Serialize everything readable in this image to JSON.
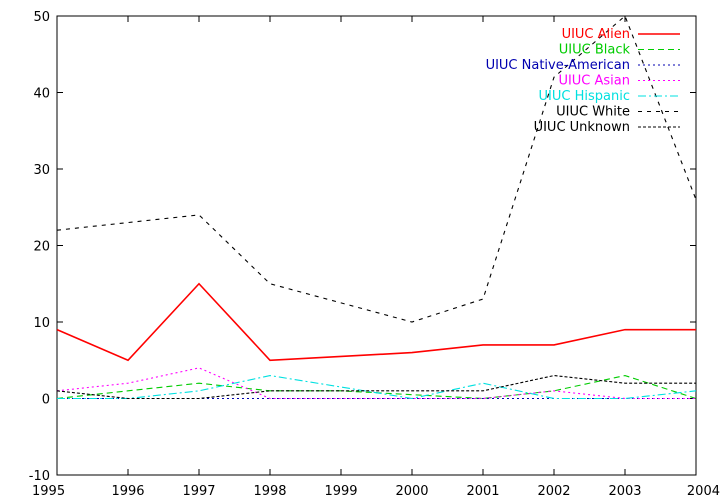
{
  "chart_data": {
    "type": "line",
    "title": "",
    "xlabel": "",
    "ylabel": "",
    "xlim": [
      1995,
      2004
    ],
    "ylim": [
      -10,
      50
    ],
    "x": [
      1995,
      1996,
      1997,
      1998,
      1999,
      2000,
      2001,
      2002,
      2003,
      2004
    ],
    "xticks": [
      "1995",
      "1996",
      "1997",
      "1998",
      "1999",
      "2000",
      "2001",
      "2002",
      "2003",
      "2004"
    ],
    "yticks": [
      "-10",
      "0",
      "10",
      "20",
      "30",
      "40",
      "50"
    ],
    "grid": false,
    "legend_position": "top-right",
    "series": [
      {
        "name": "UIUC Alien",
        "color": "#ff0000",
        "dash": "solid",
        "values": [
          9,
          5,
          15,
          5,
          5.5,
          6,
          7,
          7,
          9,
          9
        ]
      },
      {
        "name": "UIUC Black",
        "color": "#00cc00",
        "dash": "dashed",
        "values": [
          0,
          1,
          2,
          1,
          1,
          0.5,
          0,
          1,
          3,
          0
        ]
      },
      {
        "name": "UIUC Native-American",
        "color": "#0000b0",
        "dash": "dotted",
        "values": [
          0,
          0,
          0,
          0,
          0,
          0,
          0,
          0,
          0,
          0
        ]
      },
      {
        "name": "UIUC Asian",
        "color": "#ff00ff",
        "dash": "dotted",
        "values": [
          1,
          2,
          4,
          0,
          0,
          0,
          0,
          1,
          0,
          0
        ]
      },
      {
        "name": "UIUC Hispanic",
        "color": "#00e0e0",
        "dash": "dashdot",
        "values": [
          0,
          0,
          1,
          3,
          1.5,
          0,
          2,
          0,
          0,
          1
        ]
      },
      {
        "name": "UIUC White",
        "color": "#000000",
        "dash": "sparse",
        "values": [
          22,
          23,
          24,
          15,
          12.5,
          10,
          13,
          42,
          50,
          26
        ]
      },
      {
        "name": "UIUC Unknown",
        "color": "#000000",
        "dash": "dense",
        "values": [
          1,
          0,
          0,
          1,
          1,
          1,
          1,
          3,
          2,
          2
        ]
      }
    ]
  }
}
